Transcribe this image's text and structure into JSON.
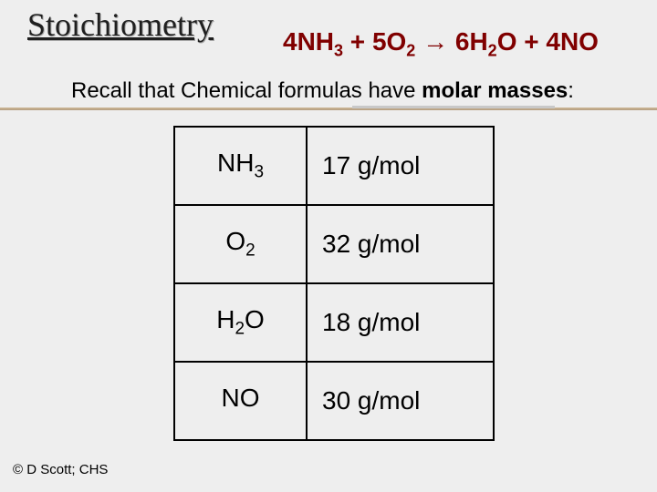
{
  "title": "Stoichiometry",
  "equation": {
    "parts": [
      "4NH",
      "3",
      " + 5O",
      "2",
      " → 6H",
      "2",
      "O + 4NO"
    ]
  },
  "recall_prefix": "Recall that Chemical formulas have ",
  "recall_bold": "molar masses",
  "recall_suffix": ":",
  "table": {
    "rows": [
      {
        "formula_base": "NH",
        "formula_sub": "3",
        "mass": "17 g/mol"
      },
      {
        "formula_base": "O",
        "formula_sub": "2",
        "mass": "32 g/mol"
      },
      {
        "formula_base": "H",
        "formula_sub": "2",
        "formula_tail": "O",
        "mass": "18 g/mol"
      },
      {
        "formula_base": "NO",
        "formula_sub": "",
        "mass": "30 g/mol"
      }
    ]
  },
  "copyright": "© D Scott; CHS",
  "colors": {
    "background": "#eeeeee",
    "equation": "#800000",
    "border": "#000000"
  }
}
